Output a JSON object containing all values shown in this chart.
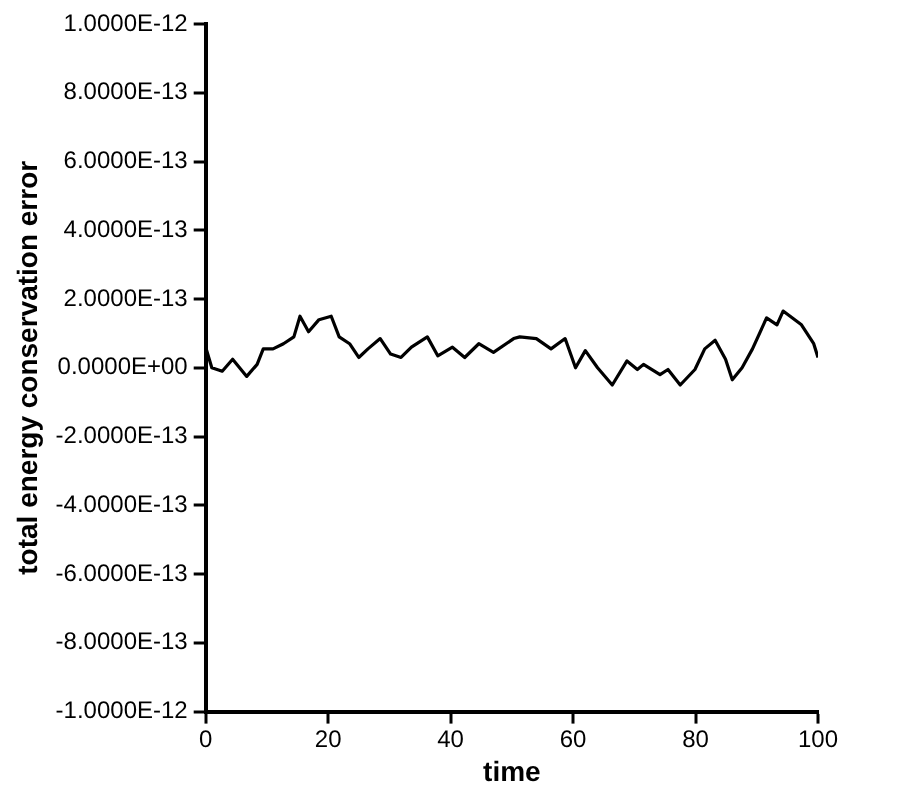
{
  "chart_data": {
    "type": "line",
    "xlabel": "time",
    "ylabel": "total energy conservation error",
    "x": [
      0,
      1,
      2.7,
      4.4,
      6.7,
      8.4,
      9.4,
      11,
      12.7,
      14.4,
      15.4,
      16.8,
      18.5,
      20.5,
      21.8,
      23.5,
      25,
      26.5,
      28.5,
      30.2,
      31.9,
      33.6,
      36.2,
      37.9,
      40.3,
      42.3,
      44.6,
      47,
      50.3,
      51.3,
      54,
      56.4,
      58.7,
      60.4,
      62,
      64,
      66.4,
      68.8,
      70.5,
      71.5,
      74.2,
      75.5,
      77.5,
      79.9,
      81.5,
      83.2,
      84.9,
      86,
      87.6,
      89.3,
      91.6,
      93.3,
      94.3,
      97.3,
      99.3,
      100
    ],
    "series": [
      {
        "color": "#000000",
        "values": [
          6e-14,
          0,
          -1e-14,
          2.5e-14,
          -2.5e-14,
          1e-14,
          5.5e-14,
          5.5e-14,
          7e-14,
          9e-14,
          1.5e-13,
          1.05e-13,
          1.4e-13,
          1.5e-13,
          9e-14,
          7e-14,
          3e-14,
          5.5e-14,
          8.5e-14,
          4e-14,
          3e-14,
          6e-14,
          9e-14,
          3.5e-14,
          6e-14,
          3e-14,
          7e-14,
          4.5e-14,
          8.5e-14,
          9e-14,
          8.5e-14,
          5.5e-14,
          8.5e-14,
          0,
          5e-14,
          0,
          -5e-14,
          2e-14,
          -5e-15,
          1e-14,
          -2e-14,
          -5e-15,
          -5e-14,
          -5e-15,
          5.5e-14,
          8e-14,
          2.5e-14,
          -3.5e-14,
          0,
          5.5e-14,
          1.45e-13,
          1.25e-13,
          1.65e-13,
          1.25e-13,
          7e-14,
          3e-14
        ]
      }
    ],
    "xlim": [
      0,
      100
    ],
    "xticks": [
      0,
      20,
      40,
      60,
      80,
      100
    ],
    "ylim": [
      -1e-12,
      1e-12
    ],
    "yticks": [
      {
        "value": -1e-12,
        "label": "-1.0000E-12"
      },
      {
        "value": -8e-13,
        "label": "-8.0000E-13"
      },
      {
        "value": -6e-13,
        "label": "-6.0000E-13"
      },
      {
        "value": -4e-13,
        "label": "-4.0000E-13"
      },
      {
        "value": -2e-13,
        "label": "-2.0000E-13"
      },
      {
        "value": 0,
        "label": "0.0000E+00"
      },
      {
        "value": 2e-13,
        "label": "2.0000E-13"
      },
      {
        "value": 4e-13,
        "label": "4.0000E-13"
      },
      {
        "value": 6e-13,
        "label": "6.0000E-13"
      },
      {
        "value": 8e-13,
        "label": "8.0000E-13"
      },
      {
        "value": 1e-12,
        "label": "1.0000E-12"
      }
    ],
    "grid": false,
    "legend": false,
    "marker": "none",
    "line_style": "solid"
  }
}
